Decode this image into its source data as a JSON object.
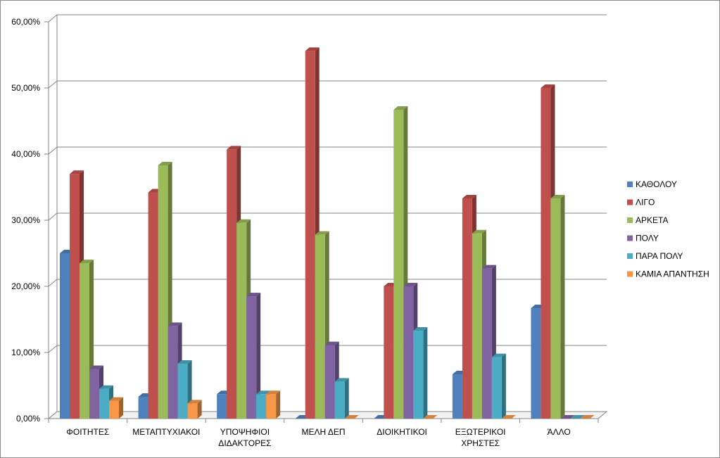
{
  "chart_data": {
    "type": "bar",
    "title": "",
    "xlabel": "",
    "ylabel": "",
    "ylim": [
      0,
      60
    ],
    "yticks": [
      "0,00%",
      "10,00%",
      "20,00%",
      "30,00%",
      "40,00%",
      "50,00%",
      "60,00%"
    ],
    "categories": [
      [
        "ΦΟΙΤΗΤΕΣ"
      ],
      [
        "ΜΕΤΑΠΤΥΧΙΑΚΟΙ"
      ],
      [
        "ΥΠΟΨΗΦΙΟΙ",
        "ΔΙΔΑΚΤΟΡΕΣ"
      ],
      [
        "ΜΕΛΗ ΔΕΠ"
      ],
      [
        "ΔΙΟΙΚΗΤΙΚΟΙ"
      ],
      [
        "ΕΞΩΤΕΡΙΚΟΙ",
        "ΧΡΗΣΤΕΣ"
      ],
      [
        "ΆΛΛΟ"
      ]
    ],
    "series": [
      {
        "name": "ΚΑΘΟΛΟΥ",
        "color": "#4f81bd",
        "values": [
          25.0,
          3.3,
          3.7,
          0,
          0,
          6.7,
          16.7
        ]
      },
      {
        "name": "ΛΙΓΟ",
        "color": "#c0504d",
        "values": [
          37.0,
          34.2,
          40.7,
          55.6,
          20.0,
          33.3,
          50.0
        ]
      },
      {
        "name": "ΑΡΚΕΤΑ",
        "color": "#9bbb59",
        "values": [
          23.5,
          38.3,
          29.6,
          27.8,
          46.7,
          28.0,
          33.3
        ]
      },
      {
        "name": "ΠΟΛΥ",
        "color": "#8064a2",
        "values": [
          7.5,
          14.0,
          18.5,
          11.1,
          20.0,
          22.7,
          0
        ]
      },
      {
        "name": "ΠΑΡΑ ΠΟΛΥ",
        "color": "#4bacc6",
        "values": [
          4.5,
          8.3,
          3.7,
          5.6,
          13.3,
          9.3,
          0
        ]
      },
      {
        "name": "ΚΑΜΙΑ ΑΠΑΝΤΗΣΗ",
        "color": "#f79646",
        "values": [
          2.7,
          2.3,
          3.7,
          0,
          0,
          0,
          0
        ]
      }
    ],
    "grid": true,
    "legend_position": "right"
  }
}
